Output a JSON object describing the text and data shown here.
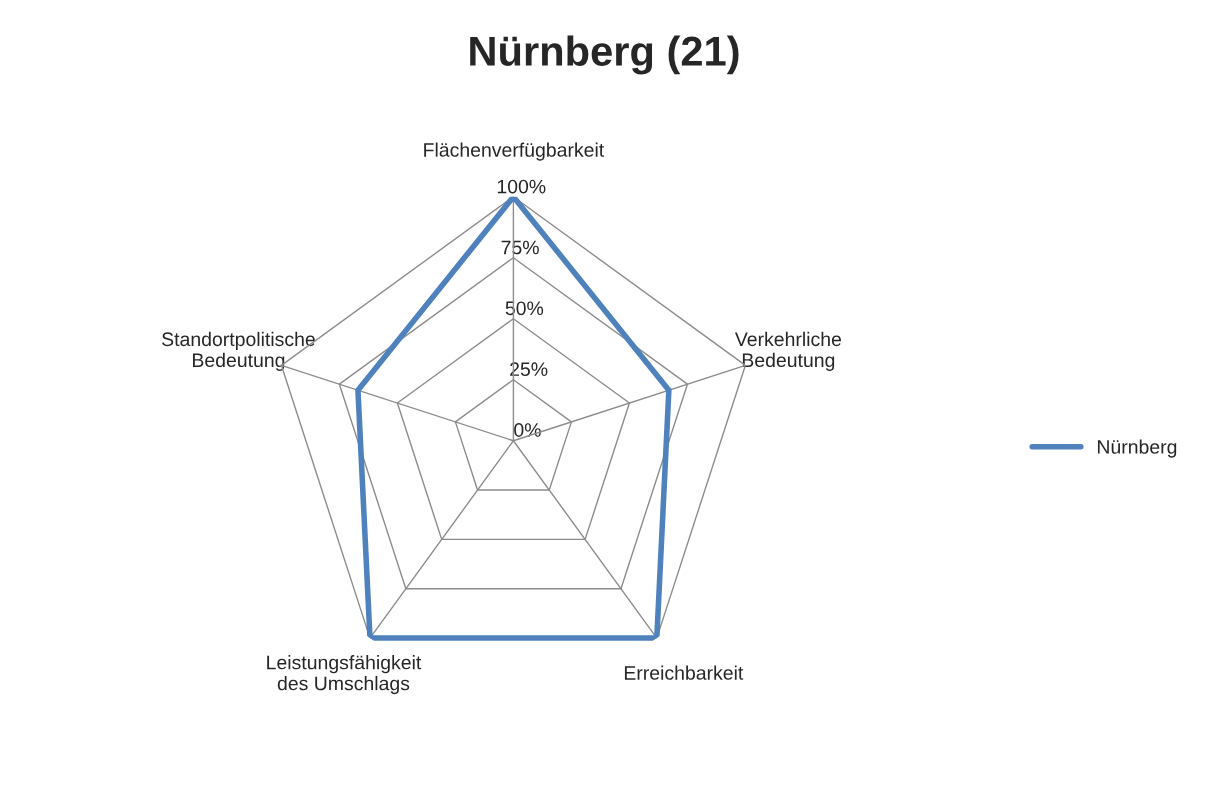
{
  "chart_data": {
    "type": "radar",
    "title": "Nürnberg (21)",
    "categories": [
      "Flächenverfügbarkeit",
      "Verkehrliche\nBedeutung",
      "Erreichbarkeit",
      "Leistungsfähigkeit\ndes Umschlags",
      "Standortpolitische\nBedeutung"
    ],
    "series": [
      {
        "name": "Nürnberg",
        "color": "#4f81bd",
        "values": [
          100,
          67,
          100,
          100,
          67
        ]
      }
    ],
    "ylim": [
      0,
      100
    ],
    "yticks": [
      {
        "value": 0,
        "label": "0%"
      },
      {
        "value": 25,
        "label": "25%"
      },
      {
        "value": 50,
        "label": "50%"
      },
      {
        "value": 75,
        "label": "75%"
      },
      {
        "value": 100,
        "label": "100%"
      }
    ],
    "grid": true,
    "legend": "right"
  }
}
